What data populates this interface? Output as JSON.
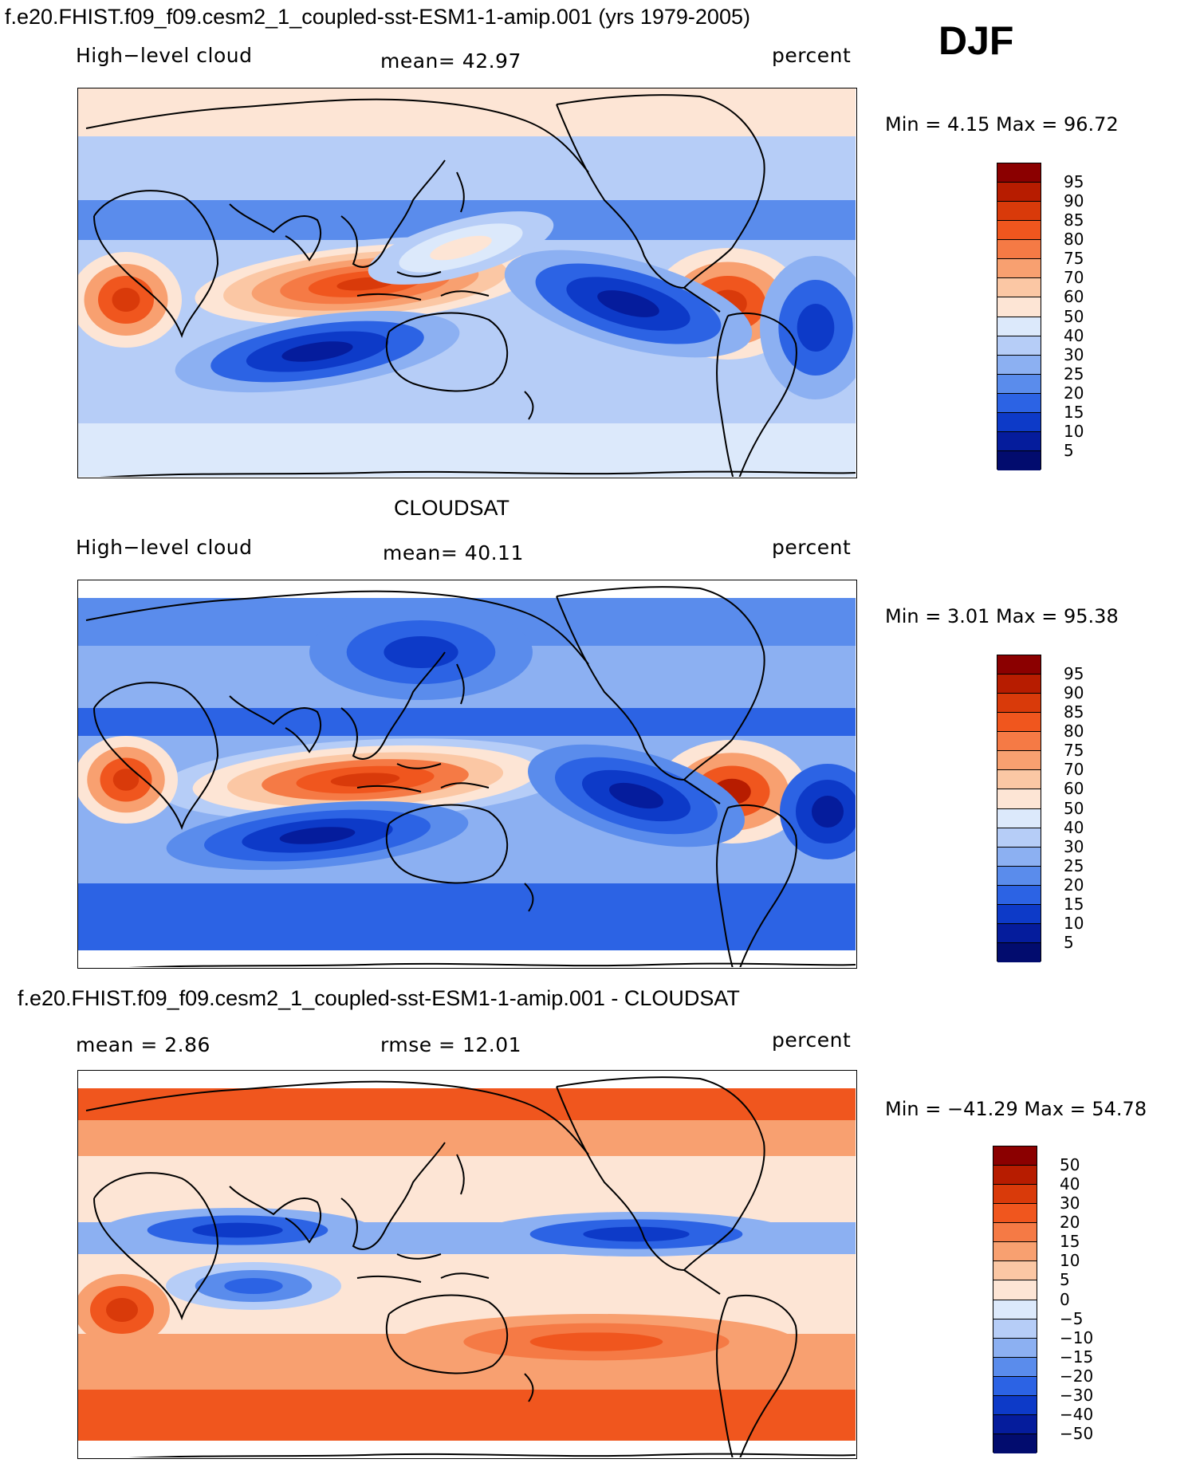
{
  "season": "DJF",
  "panels": [
    {
      "id": "model",
      "title": "f.e20.FHIST.f09_f09.cesm2_1_coupled-sst-ESM1-1-amip.001 (yrs 1979-2005)",
      "left_label": "High−level cloud",
      "center_label": "mean=  42.97",
      "right_label": "percent",
      "minmax": "Min =    4.15  Max =   96.72",
      "map_type": "field_model"
    },
    {
      "id": "obs",
      "title": "CLOUDSAT",
      "left_label": "High−level cloud",
      "center_label": "mean=  40.11",
      "right_label": "percent",
      "minmax": "Min =    3.01  Max =   95.38",
      "map_type": "field_obs"
    },
    {
      "id": "diff",
      "title": "f.e20.FHIST.f09_f09.cesm2_1_coupled-sst-ESM1-1-amip.001 - CLOUDSAT",
      "left_label": "mean =    2.86",
      "center_label": "rmse =   12.01",
      "right_label": "percent",
      "minmax": "Min = −41.29  Max =   54.78",
      "map_type": "difference"
    }
  ],
  "colorbars": {
    "field": {
      "labels": [
        "95",
        "90",
        "85",
        "80",
        "75",
        "70",
        "60",
        "50",
        "40",
        "30",
        "25",
        "20",
        "15",
        "10",
        "5"
      ],
      "colors": [
        "#8b0000",
        "#b71c00",
        "#d93a0a",
        "#f0561e",
        "#f57a45",
        "#f8a070",
        "#fbc7a4",
        "#fde5d5",
        "#dce9fb",
        "#b6cdf7",
        "#8cb0f2",
        "#5a8cec",
        "#2c63e4",
        "#0d3ac8",
        "#051c9c",
        "#020c6e"
      ]
    },
    "diff": {
      "labels": [
        "50",
        "40",
        "30",
        "20",
        "15",
        "10",
        "5",
        "0",
        "−5",
        "−10",
        "−15",
        "−20",
        "−30",
        "−40",
        "−50"
      ],
      "colors": [
        "#8b0000",
        "#b71c00",
        "#d93a0a",
        "#f0561e",
        "#f57a45",
        "#f8a070",
        "#fbc7a4",
        "#fde5d5",
        "#dce9fb",
        "#b6cdf7",
        "#8cb0f2",
        "#5a8cec",
        "#2c63e4",
        "#0d3ac8",
        "#051c9c",
        "#020c6e"
      ]
    }
  }
}
